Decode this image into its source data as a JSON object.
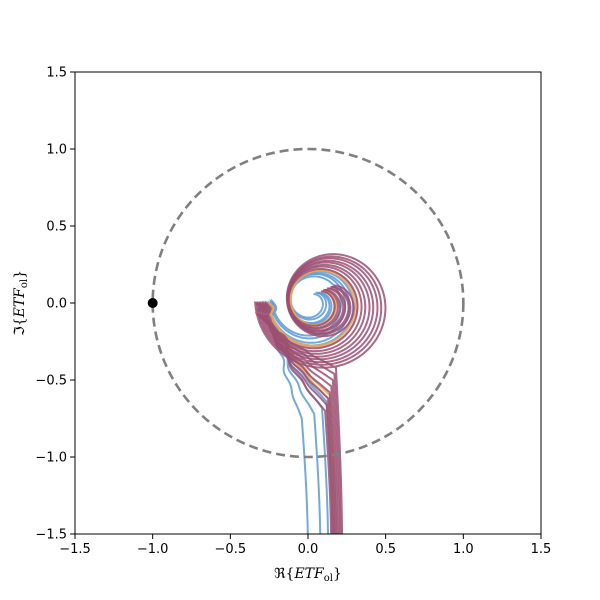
{
  "chart_data": {
    "type": "line",
    "title": "",
    "xlabel": {
      "prefix": "ℜ{",
      "main": "ETF",
      "sub": "ol",
      "suffix": "}"
    },
    "ylabel": {
      "prefix": "ℑ{",
      "main": "ETF",
      "sub": "ol",
      "suffix": "}"
    },
    "xlim": [
      -1.5,
      1.5
    ],
    "ylim": [
      -1.5,
      1.5
    ],
    "xticks": [
      -1.5,
      -1.0,
      -0.5,
      0.0,
      0.5,
      1.0,
      1.5
    ],
    "yticks": [
      -1.5,
      -1.0,
      -0.5,
      0.0,
      0.5,
      1.0,
      1.5
    ],
    "xtick_labels": [
      "−1.5",
      "−1.0",
      "−0.5",
      "0.0",
      "0.5",
      "1.0",
      "1.5"
    ],
    "ytick_labels": [
      "−1.5",
      "−1.0",
      "−0.5",
      "0.0",
      "0.5",
      "1.0",
      "1.5"
    ],
    "grid": false,
    "unit_circle": {
      "center": [
        0,
        0
      ],
      "radius": 1.0,
      "style": "dashed",
      "color": "#808080"
    },
    "critical_point": {
      "x": -1.0,
      "y": 0.0,
      "color": "#000000"
    },
    "colors": {
      "blue": "#5b9bd5",
      "orange": "#e8a35a",
      "purple": "#9b4f72"
    },
    "series": [
      {
        "color": "blue",
        "anchor_x": 0.02,
        "anchor_y": 0.01,
        "outer_r": 0.25,
        "inner_r": 0.05,
        "tail_x": 0.0,
        "bend_y": -0.75
      },
      {
        "color": "blue",
        "anchor_x": 0.03,
        "anchor_y": 0.01,
        "outer_r": 0.27,
        "inner_r": 0.06,
        "tail_x": 0.08,
        "bend_y": -0.72
      },
      {
        "color": "blue",
        "anchor_x": 0.04,
        "anchor_y": 0.0,
        "outer_r": 0.29,
        "inner_r": 0.07,
        "tail_x": 0.13,
        "bend_y": -0.68
      },
      {
        "color": "blue",
        "anchor_x": 0.05,
        "anchor_y": 0.0,
        "outer_r": 0.31,
        "inner_r": 0.07,
        "tail_x": 0.16,
        "bend_y": -0.64
      },
      {
        "color": "orange",
        "anchor_x": 0.06,
        "anchor_y": 0.0,
        "outer_r": 0.31,
        "inner_r": 0.08,
        "tail_x": 0.17,
        "bend_y": -0.62
      },
      {
        "color": "orange",
        "anchor_x": 0.07,
        "anchor_y": 0.0,
        "outer_r": 0.32,
        "inner_r": 0.08,
        "tail_x": 0.18,
        "bend_y": -0.6
      },
      {
        "color": "purple",
        "anchor_x": 0.06,
        "anchor_y": 0.0,
        "outer_r": 0.33,
        "inner_r": 0.08,
        "tail_x": 0.15,
        "bend_y": -0.7
      },
      {
        "color": "purple",
        "anchor_x": 0.07,
        "anchor_y": 0.0,
        "outer_r": 0.35,
        "inner_r": 0.09,
        "tail_x": 0.16,
        "bend_y": -0.66
      },
      {
        "color": "purple",
        "anchor_x": 0.08,
        "anchor_y": 0.0,
        "outer_r": 0.37,
        "inner_r": 0.09,
        "tail_x": 0.17,
        "bend_y": -0.62
      },
      {
        "color": "purple",
        "anchor_x": 0.09,
        "anchor_y": 0.0,
        "outer_r": 0.39,
        "inner_r": 0.1,
        "tail_x": 0.18,
        "bend_y": -0.58
      },
      {
        "color": "purple",
        "anchor_x": 0.1,
        "anchor_y": 0.0,
        "outer_r": 0.41,
        "inner_r": 0.1,
        "tail_x": 0.19,
        "bend_y": -0.54
      },
      {
        "color": "purple",
        "anchor_x": 0.11,
        "anchor_y": 0.0,
        "outer_r": 0.43,
        "inner_r": 0.11,
        "tail_x": 0.2,
        "bend_y": -0.5
      },
      {
        "color": "purple",
        "anchor_x": 0.12,
        "anchor_y": 0.0,
        "outer_r": 0.45,
        "inner_r": 0.11,
        "tail_x": 0.21,
        "bend_y": -0.46
      },
      {
        "color": "purple",
        "anchor_x": 0.13,
        "anchor_y": 0.0,
        "outer_r": 0.47,
        "inner_r": 0.12,
        "tail_x": 0.22,
        "bend_y": -0.42
      }
    ]
  }
}
